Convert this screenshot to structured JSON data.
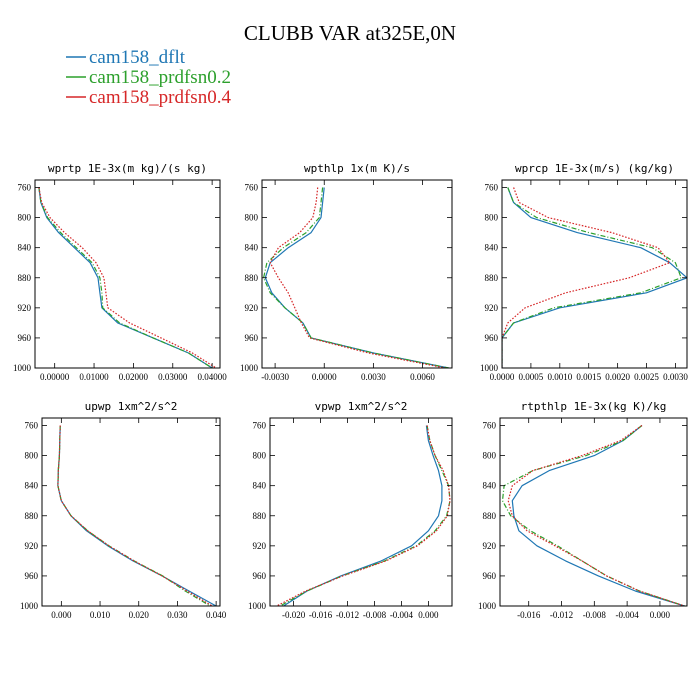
{
  "figure": {
    "title": "CLUBB VAR at325E,0N"
  },
  "legend": [
    {
      "label": "cam158_dflt",
      "color": "#1f77b4"
    },
    {
      "label": "cam158_prdfsn0.2",
      "color": "#2ca02c"
    },
    {
      "label": "cam158_prdfsn0.4",
      "color": "#d62728"
    }
  ],
  "chart_data": [
    {
      "type": "line",
      "title": "wprtp  1E-3x(m kg)/(s kg)",
      "xlim": [
        -0.005,
        0.042
      ],
      "ylim": [
        750,
        1000
      ],
      "x_ticks": [
        0.0,
        0.01,
        0.02,
        0.03,
        0.04
      ],
      "x_tick_labels": [
        "0.00000",
        "0.01000",
        "0.02000",
        "0.03000",
        "0.04000"
      ],
      "y_ticks": [
        760,
        800,
        840,
        880,
        920,
        960,
        1000
      ],
      "y_tick_labels": [
        "760",
        "800",
        "840",
        "880",
        "920",
        "960",
        "1000"
      ],
      "y": [
        760,
        780,
        800,
        820,
        840,
        860,
        880,
        900,
        920,
        940,
        960,
        980,
        1000
      ],
      "series": [
        {
          "name": "cam158_dflt",
          "color": "#1f77b4",
          "dash": "solid",
          "x": [
            -0.004,
            -0.0035,
            -0.002,
            0.001,
            0.005,
            0.009,
            0.011,
            0.0115,
            0.012,
            0.016,
            0.025,
            0.034,
            0.04
          ]
        },
        {
          "name": "cam158_prdfsn0.2",
          "color": "#2ca02c",
          "dash": "dashdot",
          "x": [
            -0.004,
            -0.0035,
            -0.0018,
            0.0015,
            0.0055,
            0.0095,
            0.0115,
            0.012,
            0.0122,
            0.0165,
            0.025,
            0.034,
            0.04
          ]
        },
        {
          "name": "cam158_prdfsn0.4",
          "color": "#d62728",
          "dash": "dotted",
          "x": [
            -0.004,
            -0.0033,
            -0.0012,
            0.0025,
            0.007,
            0.0105,
            0.0125,
            0.013,
            0.0135,
            0.019,
            0.027,
            0.035,
            0.041
          ]
        }
      ]
    },
    {
      "type": "line",
      "title": "wpthlp  1x(m K)/s",
      "xlim": [
        -0.0038,
        0.0078
      ],
      "ylim": [
        750,
        1000
      ],
      "x_ticks": [
        -0.003,
        0.0,
        0.003,
        0.006
      ],
      "x_tick_labels": [
        "-0.0030",
        "0.0000",
        "0.0030",
        "0.0060"
      ],
      "y_ticks": [
        760,
        800,
        840,
        880,
        920,
        960,
        1000
      ],
      "y_tick_labels": [
        "760",
        "800",
        "840",
        "880",
        "920",
        "960",
        "1000"
      ],
      "y": [
        760,
        780,
        800,
        820,
        840,
        860,
        880,
        900,
        920,
        940,
        960,
        980,
        1000
      ],
      "series": [
        {
          "name": "cam158_dflt",
          "color": "#1f77b4",
          "dash": "solid",
          "x": [
            0.0,
            -0.0001,
            -0.0002,
            -0.0008,
            -0.0022,
            -0.0033,
            -0.0036,
            -0.0032,
            -0.0024,
            -0.0013,
            -0.0008,
            0.003,
            0.0076
          ]
        },
        {
          "name": "cam158_prdfsn0.2",
          "color": "#2ca02c",
          "dash": "dashdot",
          "x": [
            -0.0001,
            -0.0002,
            -0.0003,
            -0.0011,
            -0.0025,
            -0.0035,
            -0.0037,
            -0.0033,
            -0.0024,
            -0.0013,
            -0.0008,
            0.003,
            0.0076
          ]
        },
        {
          "name": "cam158_prdfsn0.4",
          "color": "#d62728",
          "dash": "dotted",
          "x": [
            -0.0004,
            -0.0005,
            -0.0007,
            -0.0015,
            -0.0028,
            -0.0033,
            -0.0028,
            -0.0022,
            -0.0018,
            -0.0014,
            -0.0009,
            0.0027,
            0.0074
          ]
        }
      ]
    },
    {
      "type": "line",
      "title": "wprcp  1E-3x(m/s) (kg/kg)",
      "xlim": [
        0.0,
        0.0032
      ],
      "ylim": [
        750,
        1000
      ],
      "x_ticks": [
        0.0,
        0.0005,
        0.001,
        0.0015,
        0.002,
        0.0025,
        0.003
      ],
      "x_tick_labels": [
        "0.0000",
        "0.0005",
        "0.0010",
        "0.0015",
        "0.0020",
        "0.0025",
        "0.0030"
      ],
      "y_ticks": [
        760,
        800,
        840,
        880,
        920,
        960,
        1000
      ],
      "y_tick_labels": [
        "760",
        "800",
        "840",
        "880",
        "920",
        "960",
        "1000"
      ],
      "y": [
        760,
        780,
        800,
        820,
        840,
        860,
        880,
        900,
        920,
        940,
        960,
        980,
        1000
      ],
      "series": [
        {
          "name": "cam158_dflt",
          "color": "#1f77b4",
          "dash": "solid",
          "x": [
            0.0001,
            0.0002,
            0.0005,
            0.0013,
            0.0024,
            0.0029,
            0.0032,
            0.0025,
            0.001,
            0.0002,
            0.0,
            0.0,
            0.0
          ]
        },
        {
          "name": "cam158_prdfsn0.2",
          "color": "#2ca02c",
          "dash": "dashdot",
          "x": [
            0.0001,
            0.0002,
            0.0006,
            0.0015,
            0.0026,
            0.003,
            0.0031,
            0.0024,
            0.0009,
            0.0002,
            0.0,
            0.0,
            0.0
          ]
        },
        {
          "name": "cam158_prdfsn0.4",
          "color": "#d62728",
          "dash": "dotted",
          "x": [
            0.0002,
            0.0003,
            0.0008,
            0.0019,
            0.0027,
            0.0029,
            0.0022,
            0.0011,
            0.0004,
            0.0001,
            0.0,
            0.0,
            0.0
          ]
        }
      ]
    },
    {
      "type": "line",
      "title": "upwp  1xm^2/s^2",
      "xlim": [
        -0.005,
        0.041
      ],
      "ylim": [
        750,
        1000
      ],
      "x_ticks": [
        0.0,
        0.01,
        0.02,
        0.03,
        0.04
      ],
      "x_tick_labels": [
        "0.000",
        "0.010",
        "0.020",
        "0.030",
        "0.040"
      ],
      "y_ticks": [
        760,
        800,
        840,
        880,
        920,
        960,
        1000
      ],
      "y_tick_labels": [
        "760",
        "800",
        "840",
        "880",
        "920",
        "960",
        "1000"
      ],
      "y": [
        760,
        780,
        800,
        820,
        840,
        860,
        880,
        900,
        920,
        940,
        960,
        980,
        1000
      ],
      "series": [
        {
          "name": "cam158_dflt",
          "color": "#1f77b4",
          "dash": "solid",
          "x": [
            -0.0003,
            -0.0004,
            -0.0005,
            -0.0008,
            -0.0009,
            0.0,
            0.0025,
            0.0065,
            0.012,
            0.0185,
            0.026,
            0.033,
            0.04
          ]
        },
        {
          "name": "cam158_prdfsn0.2",
          "color": "#2ca02c",
          "dash": "dashdot",
          "x": [
            -0.0003,
            -0.0004,
            -0.0005,
            -0.0008,
            -0.0009,
            0.0,
            0.0025,
            0.0068,
            0.0123,
            0.0188,
            0.0262,
            0.032,
            0.0385
          ]
        },
        {
          "name": "cam158_prdfsn0.4",
          "color": "#d62728",
          "dash": "dotted",
          "x": [
            -0.0003,
            -0.0004,
            -0.0005,
            -0.0008,
            -0.0009,
            0.0,
            0.0025,
            0.0068,
            0.0123,
            0.0188,
            0.026,
            0.0325,
            0.039
          ]
        }
      ]
    },
    {
      "type": "line",
      "title": "vpwp  1xm^2/s^2",
      "xlim": [
        -0.0235,
        0.0035
      ],
      "ylim": [
        750,
        1000
      ],
      "x_ticks": [
        -0.02,
        -0.016,
        -0.012,
        -0.008,
        -0.004,
        0.0
      ],
      "x_tick_labels": [
        "-0.020",
        "-0.016",
        "-0.012",
        "-0.008",
        "-0.004",
        "0.000"
      ],
      "y_ticks": [
        760,
        800,
        840,
        880,
        920,
        960,
        1000
      ],
      "y_tick_labels": [
        "760",
        "800",
        "840",
        "880",
        "920",
        "960",
        "1000"
      ],
      "y": [
        760,
        780,
        800,
        820,
        840,
        860,
        880,
        900,
        920,
        940,
        960,
        980,
        1000
      ],
      "series": [
        {
          "name": "cam158_dflt",
          "color": "#1f77b4",
          "dash": "solid",
          "x": [
            -0.0003,
            0.0,
            0.0007,
            0.0015,
            0.002,
            0.002,
            0.0015,
            0.0,
            -0.0025,
            -0.007,
            -0.013,
            -0.018,
            -0.0215
          ]
        },
        {
          "name": "cam158_prdfsn0.2",
          "color": "#2ca02c",
          "dash": "dashdot",
          "x": [
            -0.0002,
            0.0002,
            0.001,
            0.002,
            0.003,
            0.0032,
            0.0027,
            0.001,
            -0.0018,
            -0.0065,
            -0.0128,
            -0.018,
            -0.022
          ]
        },
        {
          "name": "cam158_prdfsn0.4",
          "color": "#d62728",
          "dash": "dotted",
          "x": [
            -0.0002,
            0.0002,
            0.001,
            0.0022,
            0.003,
            0.0032,
            0.0028,
            0.0012,
            -0.0016,
            -0.0063,
            -0.0127,
            -0.0182,
            -0.0225
          ]
        }
      ]
    },
    {
      "type": "line",
      "title": "rtpthlp  1E-3x(kg K)/kg",
      "xlim": [
        -0.0195,
        0.0033
      ],
      "ylim": [
        750,
        1000
      ],
      "x_ticks": [
        -0.016,
        -0.012,
        -0.008,
        -0.004,
        0.0
      ],
      "x_tick_labels": [
        "-0.016",
        "-0.012",
        "-0.008",
        "-0.004",
        "0.000"
      ],
      "y_ticks": [
        760,
        800,
        840,
        880,
        920,
        960,
        1000
      ],
      "y_tick_labels": [
        "760",
        "800",
        "840",
        "880",
        "920",
        "960",
        "1000"
      ],
      "y": [
        760,
        780,
        800,
        820,
        840,
        860,
        880,
        900,
        920,
        940,
        960,
        980,
        1000
      ],
      "series": [
        {
          "name": "cam158_dflt",
          "color": "#1f77b4",
          "dash": "solid",
          "x": [
            -0.0022,
            -0.0045,
            -0.008,
            -0.0135,
            -0.0168,
            -0.018,
            -0.0178,
            -0.0172,
            -0.015,
            -0.0115,
            -0.0075,
            -0.003,
            0.003
          ]
        },
        {
          "name": "cam158_prdfsn0.2",
          "color": "#2ca02c",
          "dash": "dashdot",
          "x": [
            -0.0022,
            -0.0045,
            -0.009,
            -0.0155,
            -0.019,
            -0.0192,
            -0.0182,
            -0.0158,
            -0.0125,
            -0.0095,
            -0.0065,
            -0.0025,
            0.003
          ]
        },
        {
          "name": "cam158_prdfsn0.4",
          "color": "#d62728",
          "dash": "dotted",
          "x": [
            -0.0022,
            -0.0048,
            -0.0095,
            -0.0155,
            -0.018,
            -0.0185,
            -0.018,
            -0.0162,
            -0.0128,
            -0.0095,
            -0.0065,
            -0.0025,
            0.003
          ]
        }
      ]
    }
  ]
}
